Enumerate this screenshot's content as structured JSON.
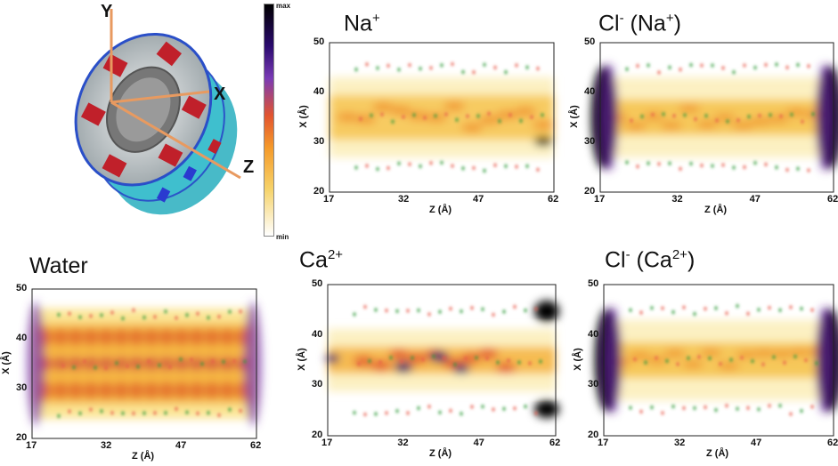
{
  "schematic": {
    "axis_y": "Y",
    "axis_x": "X",
    "axis_z": "Z"
  },
  "colorbar": {
    "max_label": "max",
    "min_label": "min",
    "colors": [
      "#000000",
      "#2a0a6e",
      "#7a3ab5",
      "#e2542f",
      "#f59a2a",
      "#f6d36a",
      "#ffffff"
    ]
  },
  "panels": [
    {
      "id": "na",
      "title": "Na",
      "sup": "+",
      "title_suffix": ""
    },
    {
      "id": "cl_na",
      "title": "Cl",
      "sup": "-",
      "title_suffix": " (Na",
      "suffix_sup": "+",
      "suffix_close": ")"
    },
    {
      "id": "water",
      "title": "Water",
      "sup": "",
      "title_suffix": ""
    },
    {
      "id": "ca",
      "title": "Ca",
      "sup": "2+",
      "title_suffix": ""
    },
    {
      "id": "cl_ca",
      "title": "Cl",
      "sup": "-",
      "title_suffix": " (Ca",
      "suffix_sup": "2+",
      "suffix_close": ")"
    }
  ],
  "axes": {
    "xlabel": "Z (Å)",
    "ylabel": "X (Å)",
    "xticks": [
      "17",
      "32",
      "47",
      "62"
    ],
    "yticks": [
      "50",
      "40",
      "30",
      "20"
    ]
  },
  "chart_data": [
    {
      "type": "heatmap",
      "title": "Na+",
      "xlabel": "Z (Å)",
      "ylabel": "X (Å)",
      "xlim": [
        17,
        62
      ],
      "ylim": [
        20,
        50
      ],
      "xticks": [
        17,
        32,
        47,
        62
      ],
      "yticks": [
        20,
        30,
        40,
        50
      ]
    },
    {
      "type": "heatmap",
      "title": "Cl- (Na+)",
      "xlabel": "Z (Å)",
      "ylabel": "X (Å)",
      "xlim": [
        17,
        62
      ],
      "ylim": [
        20,
        50
      ],
      "xticks": [
        17,
        32,
        47,
        62
      ],
      "yticks": [
        20,
        30,
        40,
        50
      ]
    },
    {
      "type": "heatmap",
      "title": "Water",
      "xlabel": "Z (Å)",
      "ylabel": "X (Å)",
      "xlim": [
        17,
        62
      ],
      "ylim": [
        20,
        50
      ],
      "xticks": [
        17,
        32,
        47,
        62
      ],
      "yticks": [
        20,
        30,
        40,
        50
      ]
    },
    {
      "type": "heatmap",
      "title": "Ca2+",
      "xlabel": "Z (Å)",
      "ylabel": "X (Å)",
      "xlim": [
        17,
        62
      ],
      "ylim": [
        20,
        50
      ],
      "xticks": [
        17,
        32,
        47,
        62
      ],
      "yticks": [
        20,
        30,
        40,
        50
      ]
    },
    {
      "type": "heatmap",
      "title": "Cl- (Ca2+)",
      "xlabel": "Z (Å)",
      "ylabel": "X (Å)",
      "xlim": [
        17,
        62
      ],
      "ylim": [
        20,
        50
      ],
      "xticks": [
        17,
        32,
        47,
        62
      ],
      "yticks": [
        20,
        30,
        40,
        50
      ]
    }
  ]
}
